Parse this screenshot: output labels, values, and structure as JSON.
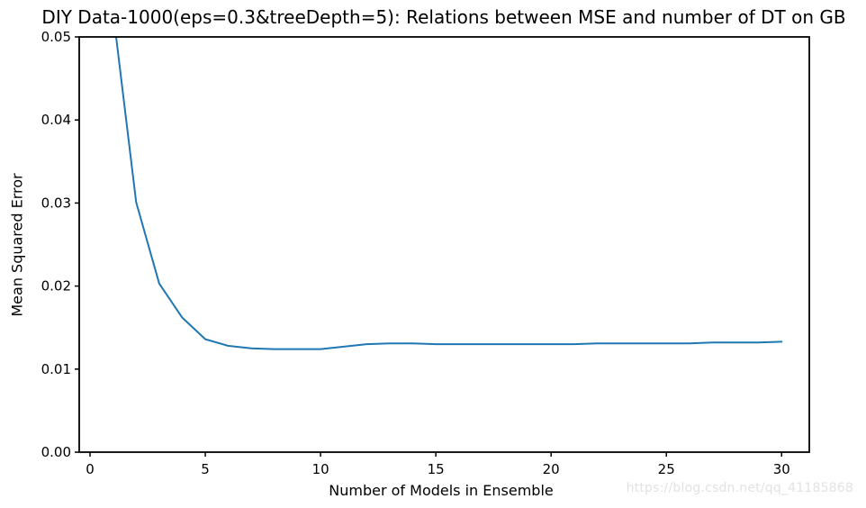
{
  "chart_data": {
    "type": "line",
    "title": "DIY Data-1000(eps=0.3&treeDepth=5): Relations between MSE and number of DT on GB",
    "xlabel": "Number of Models in Ensemble",
    "ylabel": "Mean Squared Error",
    "x": [
      1,
      2,
      3,
      4,
      5,
      6,
      7,
      8,
      9,
      10,
      11,
      12,
      13,
      14,
      15,
      16,
      17,
      18,
      19,
      20,
      21,
      22,
      23,
      24,
      25,
      26,
      27,
      28,
      29,
      30
    ],
    "series": [
      {
        "name": "MSE",
        "values": [
          0.053,
          0.0301,
          0.0203,
          0.0162,
          0.0136,
          0.0128,
          0.0125,
          0.0124,
          0.0124,
          0.0124,
          0.0127,
          0.013,
          0.0131,
          0.0131,
          0.013,
          0.013,
          0.013,
          0.013,
          0.013,
          0.013,
          0.013,
          0.0131,
          0.0131,
          0.0131,
          0.0131,
          0.0131,
          0.0132,
          0.0132,
          0.0132,
          0.0133
        ]
      }
    ],
    "xlim": [
      -0.47,
      31.2
    ],
    "ylim": [
      0,
      0.05
    ],
    "xticks": [
      0,
      5,
      10,
      15,
      20,
      25,
      30
    ],
    "yticks": [
      0,
      0.01,
      0.02,
      0.03,
      0.04,
      0.05
    ],
    "ytick_decimals": 2,
    "grid": false,
    "legend": null,
    "line_color": "#1f77b4",
    "axis_color": "#000000"
  },
  "watermark": {
    "text": "https://blog.csdn.net/qq_41185868",
    "color": "#e2e2e2"
  }
}
